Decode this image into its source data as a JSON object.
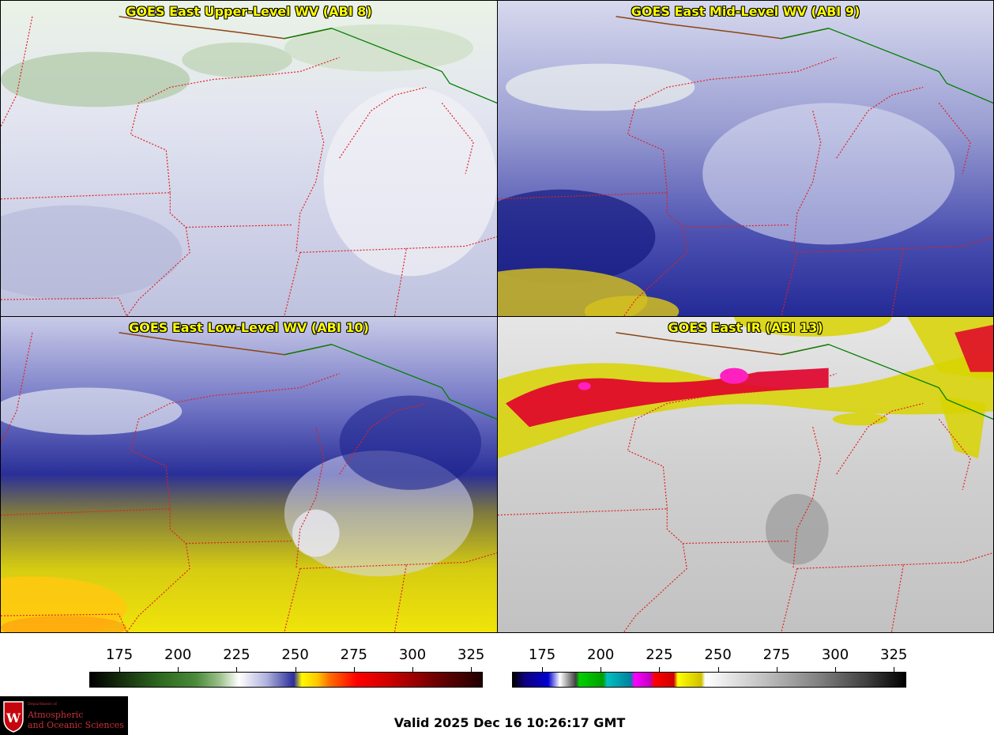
{
  "panels": [
    {
      "id": "upper",
      "title": "GOES East Upper-Level WV (ABI 8)"
    },
    {
      "id": "mid",
      "title": "GOES East Mid-Level WV (ABI 9)"
    },
    {
      "id": "low",
      "title": "GOES East Low-Level WV (ABI 10)"
    },
    {
      "id": "ir",
      "title": "GOES East IR (ABI 13)"
    }
  ],
  "colorbars": [
    {
      "name": "wv-colorbar",
      "ticks": [
        "175",
        "200",
        "225",
        "250",
        "275",
        "300",
        "325"
      ]
    },
    {
      "name": "ir-colorbar",
      "ticks": [
        "175",
        "200",
        "225",
        "250",
        "275",
        "300",
        "325"
      ]
    }
  ],
  "valid_time": "Valid 2025 Dec 16 10:26:17 GMT",
  "logo": {
    "dept": "Department of",
    "line1": "Atmospheric",
    "line2": "and Oceanic Sciences",
    "crest_letter": "W"
  },
  "colors": {
    "state_border": "#e02020",
    "canada_border": "#008000",
    "coastline": "#8b4513",
    "title_text": "#ffff00"
  }
}
